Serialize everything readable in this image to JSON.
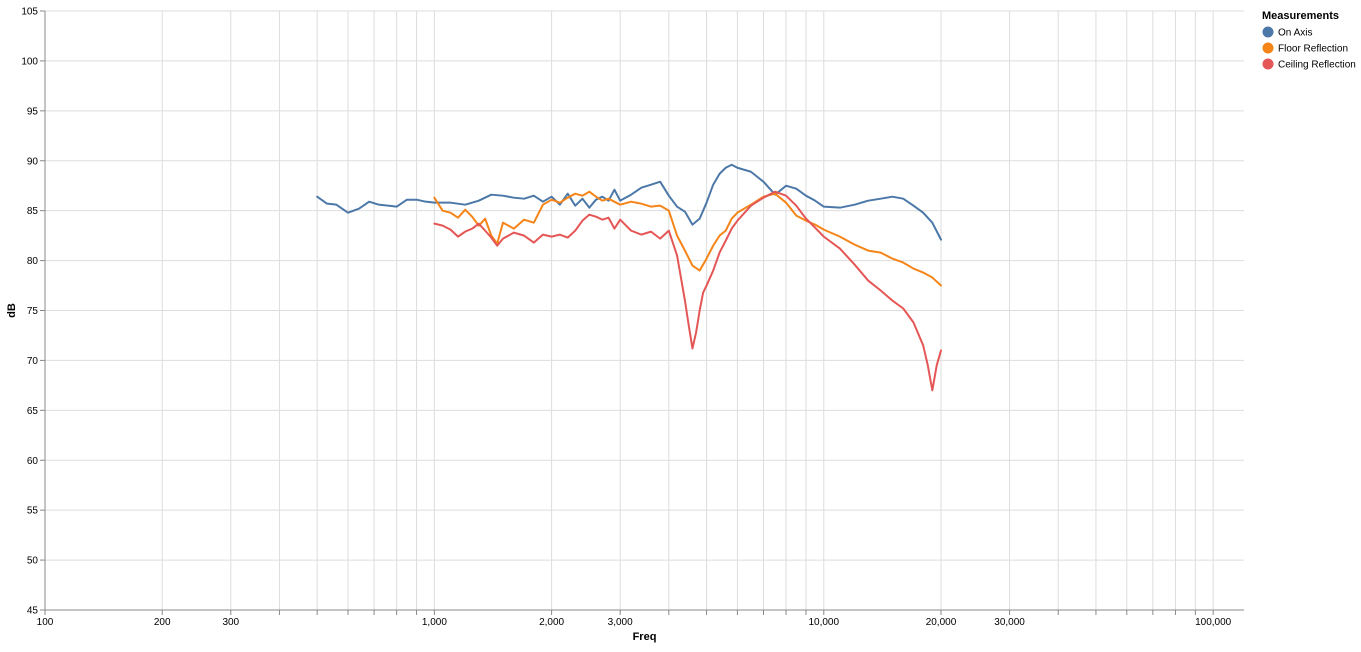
{
  "chart_data": {
    "type": "line",
    "x_scale": "log",
    "xlabel": "Freq",
    "ylabel": "dB",
    "xlim": [
      100,
      120000
    ],
    "ylim": [
      45,
      105
    ],
    "x_ticks": [
      100,
      200,
      300,
      1000,
      2000,
      3000,
      10000,
      20000,
      30000,
      100000
    ],
    "x_tick_labels": [
      "100",
      "200",
      "300",
      "1,000",
      "2,000",
      "3,000",
      "10,000",
      "20,000",
      "30,000",
      "100,000"
    ],
    "y_ticks": [
      45,
      50,
      55,
      60,
      65,
      70,
      75,
      80,
      85,
      90,
      95,
      100,
      105
    ],
    "y_tick_labels": [
      "45",
      "50",
      "55",
      "60",
      "65",
      "70",
      "75",
      "80",
      "85",
      "90",
      "95",
      "100",
      "105"
    ],
    "grid": true,
    "legend": {
      "title": "Measurements",
      "position": "top-right",
      "entries": [
        "On Axis",
        "Floor Reflection",
        "Ceiling Reflection"
      ]
    },
    "series": [
      {
        "name": "On Axis",
        "color": "#4c78a8",
        "x": [
          500,
          530,
          560,
          600,
          640,
          680,
          720,
          760,
          800,
          850,
          900,
          950,
          1000,
          1100,
          1200,
          1300,
          1400,
          1500,
          1600,
          1700,
          1800,
          1900,
          2000,
          2100,
          2200,
          2300,
          2400,
          2500,
          2600,
          2700,
          2800,
          2900,
          3000,
          3200,
          3400,
          3600,
          3800,
          4000,
          4200,
          4400,
          4600,
          4800,
          5000,
          5200,
          5400,
          5600,
          5800,
          6000,
          6500,
          7000,
          7500,
          8000,
          8500,
          9000,
          9500,
          10000,
          11000,
          12000,
          13000,
          14000,
          15000,
          16000,
          17000,
          18000,
          19000,
          20000
        ],
        "y": [
          86.4,
          85.7,
          85.6,
          84.8,
          85.2,
          85.9,
          85.6,
          85.5,
          85.4,
          86.1,
          86.1,
          85.9,
          85.8,
          85.8,
          85.6,
          86.0,
          86.6,
          86.5,
          86.3,
          86.2,
          86.5,
          85.9,
          86.4,
          85.6,
          86.7,
          85.5,
          86.2,
          85.3,
          86.1,
          86.4,
          86.0,
          87.1,
          86.0,
          86.6,
          87.3,
          87.6,
          87.9,
          86.5,
          85.4,
          84.9,
          83.6,
          84.2,
          85.8,
          87.6,
          88.7,
          89.3,
          89.6,
          89.3,
          88.9,
          87.9,
          86.6,
          87.5,
          87.2,
          86.5,
          86.0,
          85.4,
          85.3,
          85.6,
          86.0,
          86.2,
          86.4,
          86.2,
          85.5,
          84.8,
          83.8,
          82.1
        ]
      },
      {
        "name": "Floor Reflection",
        "color": "#f58518",
        "x": [
          1000,
          1050,
          1100,
          1150,
          1200,
          1250,
          1300,
          1350,
          1400,
          1450,
          1500,
          1600,
          1700,
          1800,
          1900,
          2000,
          2100,
          2200,
          2300,
          2400,
          2500,
          2600,
          2700,
          2800,
          3000,
          3200,
          3400,
          3600,
          3800,
          4000,
          4200,
          4400,
          4600,
          4800,
          5000,
          5200,
          5400,
          5600,
          5800,
          6000,
          6500,
          7000,
          7500,
          8000,
          8500,
          9000,
          9500,
          10000,
          11000,
          12000,
          13000,
          14000,
          15000,
          16000,
          17000,
          18000,
          19000,
          20000
        ],
        "y": [
          86.3,
          85.0,
          84.8,
          84.3,
          85.1,
          84.4,
          83.5,
          84.2,
          82.5,
          81.7,
          83.8,
          83.2,
          84.1,
          83.8,
          85.6,
          86.1,
          85.8,
          86.3,
          86.7,
          86.5,
          86.9,
          86.4,
          86.0,
          86.2,
          85.6,
          85.9,
          85.7,
          85.4,
          85.5,
          85.0,
          82.5,
          81.0,
          79.5,
          79.0,
          80.2,
          81.5,
          82.5,
          83.0,
          84.2,
          84.8,
          85.6,
          86.4,
          86.7,
          85.8,
          84.5,
          84.0,
          83.6,
          83.1,
          82.4,
          81.6,
          81.0,
          80.8,
          80.2,
          79.8,
          79.2,
          78.8,
          78.3,
          77.5
        ]
      },
      {
        "name": "Ceiling Reflection",
        "color": "#e45756",
        "x": [
          1000,
          1050,
          1100,
          1150,
          1200,
          1250,
          1300,
          1350,
          1400,
          1450,
          1500,
          1600,
          1700,
          1800,
          1900,
          2000,
          2100,
          2200,
          2300,
          2400,
          2500,
          2600,
          2700,
          2800,
          2900,
          3000,
          3200,
          3400,
          3600,
          3800,
          4000,
          4200,
          4400,
          4500,
          4600,
          4700,
          4800,
          4900,
          5000,
          5200,
          5400,
          5600,
          5800,
          6000,
          6500,
          7000,
          7500,
          8000,
          8500,
          9000,
          9500,
          10000,
          11000,
          12000,
          13000,
          14000,
          15000,
          16000,
          17000,
          18000,
          18500,
          19000,
          19500,
          20000
        ],
        "y": [
          83.7,
          83.5,
          83.1,
          82.4,
          82.9,
          83.2,
          83.7,
          83.0,
          82.3,
          81.5,
          82.2,
          82.8,
          82.5,
          81.8,
          82.6,
          82.4,
          82.6,
          82.3,
          83.0,
          84.0,
          84.6,
          84.4,
          84.1,
          84.3,
          83.2,
          84.1,
          83.0,
          82.6,
          82.9,
          82.2,
          83.0,
          80.5,
          76.0,
          73.5,
          71.2,
          72.8,
          75.0,
          76.8,
          77.5,
          79.0,
          80.8,
          82.0,
          83.2,
          84.0,
          85.5,
          86.3,
          86.9,
          86.5,
          85.5,
          84.2,
          83.3,
          82.4,
          81.2,
          79.6,
          78.0,
          77.0,
          76.0,
          75.2,
          73.8,
          71.5,
          69.5,
          67.0,
          69.5,
          71.0
        ]
      }
    ]
  }
}
